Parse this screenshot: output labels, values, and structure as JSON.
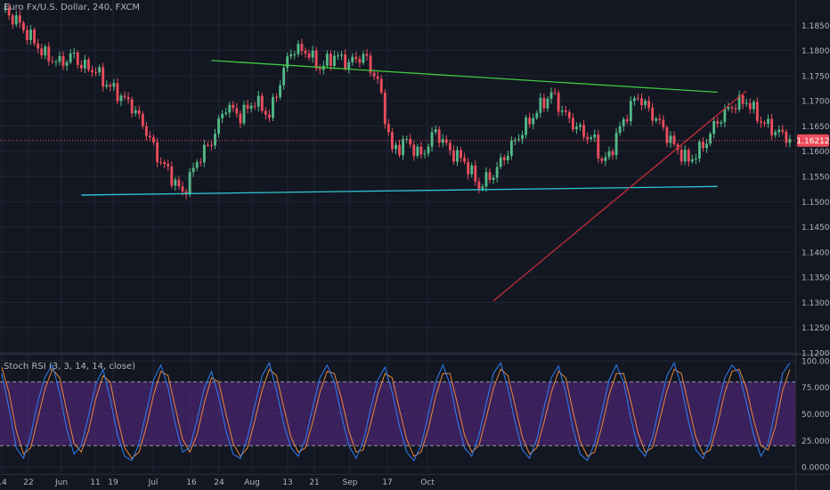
{
  "title": "Euro Fx/U.S. Dollar, 240, FXCM",
  "indicator_label": "Stoch RSI (3, 3, 14, 14, close)",
  "colors": {
    "background": "#131722",
    "grid": "#232634",
    "axis_text": "#b2b5be",
    "candle_up": "#53b987",
    "candle_down": "#eb4d5c",
    "resistance_line": "#3ec93e",
    "support_line": "#2fc7d6",
    "trend_line": "#c42c3a",
    "price_line": "#eb4d5c",
    "price_badge": "#eb4d5c",
    "k_line": "#2f7ff2",
    "d_line": "#e8873a",
    "band_fill": "#5b2a8a"
  },
  "chart_data": [
    {
      "type": "candlestick",
      "title": "Euro Fx/U.S. Dollar, 240, FXCM",
      "x_ticks": [
        "14",
        "22",
        "Jun",
        "11",
        "19",
        "Jul",
        "16",
        "24",
        "Aug",
        "13",
        "21",
        "Sep",
        "17",
        "Oct"
      ],
      "y_ticks": [
        "1.18500",
        "1.18000",
        "1.17500",
        "1.17000",
        "1.16500",
        "1.16000",
        "1.15500",
        "1.15000",
        "1.14500",
        "1.14000",
        "1.13500",
        "1.13000",
        "1.12500",
        "1.12000"
      ],
      "ylim": [
        1.12,
        1.19
      ],
      "last_price": "1.16212",
      "last_price_value": 1.16212,
      "grid": true,
      "series": [
        {
          "name": "",
          "kind": "close_path",
          "x": [
            0,
            4,
            8,
            12,
            16,
            20,
            22,
            26,
            28,
            32,
            36,
            40,
            43,
            46,
            50,
            54,
            58,
            62,
            66,
            70,
            74,
            78,
            80,
            84,
            88,
            92,
            96,
            100,
            104,
            108,
            112,
            116,
            120,
            124,
            128,
            132,
            136,
            140,
            144,
            148,
            152,
            156,
            160,
            164,
            166,
            168,
            170,
            172,
            174,
            176,
            178,
            182,
            186,
            190,
            194,
            198,
            202,
            206,
            210,
            214,
            218
          ],
          "y": [
            1.188,
            1.186,
            1.1825,
            1.179,
            1.1775,
            1.179,
            1.177,
            1.176,
            1.174,
            1.1715,
            1.169,
            1.164,
            1.159,
            1.156,
            1.1515,
            1.158,
            1.162,
            1.169,
            1.167,
            1.17,
            1.167,
            1.176,
            1.18,
            1.18,
            1.1765,
            1.179,
            1.1775,
            1.179,
            1.174,
            1.16,
            1.162,
            1.159,
            1.164,
            1.16,
            1.158,
            1.153,
            1.1555,
            1.16,
            1.164,
            1.168,
            1.1715,
            1.167,
            1.164,
            1.162,
            1.158,
            1.159,
            1.163,
            1.166,
            1.169,
            1.171,
            1.169,
            1.1655,
            1.161,
            1.158,
            1.161,
            1.166,
            1.169,
            1.17,
            1.166,
            1.164,
            1.1625
          ]
        }
      ],
      "annotations": [
        {
          "name": "resistance-line",
          "from": [
            58,
            1.178
          ],
          "to": [
            198,
            1.1717
          ]
        },
        {
          "name": "support-line",
          "from": [
            22,
            1.1513
          ],
          "to": [
            198,
            1.153
          ]
        },
        {
          "name": "trend-line",
          "from": [
            136,
            1.1303
          ],
          "to": [
            206,
            1.172
          ]
        }
      ]
    },
    {
      "type": "line",
      "title": "Stoch RSI (3, 3, 14, 14, close)",
      "y_ticks": [
        "100.0000",
        "75.0000",
        "50.0000",
        "25.0000",
        "0.0000"
      ],
      "ylim": [
        -5,
        105
      ],
      "bands": [
        20,
        80
      ],
      "x": [
        0,
        2,
        4,
        6,
        8,
        10,
        12,
        14,
        16,
        18,
        20,
        22,
        24,
        26,
        28,
        30,
        32,
        34,
        36,
        38,
        40,
        42,
        44,
        46,
        48,
        50,
        52,
        54,
        56,
        58,
        60,
        62,
        64,
        66,
        68,
        70,
        72,
        74,
        76,
        78,
        80,
        82,
        84,
        86,
        88,
        90,
        92,
        94,
        96,
        98,
        100,
        102,
        104,
        106,
        108,
        110,
        112,
        114,
        116,
        118,
        120,
        122,
        124,
        126,
        128,
        130,
        132,
        134,
        136,
        138,
        140,
        142,
        144,
        146,
        148,
        150,
        152,
        154,
        156,
        158,
        160,
        162,
        164,
        166,
        168,
        170,
        172,
        174,
        176,
        178,
        180,
        182,
        184,
        186,
        188,
        190,
        192,
        194,
        196,
        198,
        200,
        202,
        204,
        206,
        208,
        210,
        212,
        214,
        216,
        218
      ],
      "series": [
        {
          "name": "",
          "values": [
            88,
            55,
            18,
            8,
            30,
            62,
            85,
            96,
            70,
            35,
            12,
            20,
            48,
            78,
            92,
            64,
            30,
            10,
            6,
            22,
            52,
            82,
            96,
            75,
            40,
            14,
            18,
            44,
            74,
            90,
            66,
            34,
            12,
            8,
            28,
            58,
            86,
            98,
            72,
            40,
            18,
            10,
            26,
            56,
            84,
            96,
            80,
            48,
            20,
            8,
            24,
            54,
            82,
            94,
            70,
            38,
            14,
            6,
            20,
            50,
            80,
            96,
            78,
            44,
            18,
            10,
            30,
            60,
            88,
            98,
            74,
            42,
            16,
            8,
            26,
            56,
            84,
            95,
            70,
            36,
            12,
            6,
            22,
            52,
            82,
            96,
            80,
            46,
            18,
            10,
            28,
            58,
            86,
            98,
            76,
            42,
            16,
            8,
            24,
            56,
            84,
            96,
            88,
            60,
            30,
            10,
            22,
            54,
            88,
            98
          ]
        },
        {
          "name": "",
          "values": [
            94,
            70,
            34,
            12,
            18,
            46,
            74,
            92,
            84,
            52,
            22,
            14,
            34,
            64,
            86,
            80,
            46,
            18,
            8,
            14,
            38,
            68,
            90,
            86,
            56,
            26,
            14,
            30,
            60,
            84,
            80,
            50,
            22,
            10,
            18,
            44,
            72,
            92,
            86,
            56,
            28,
            14,
            18,
            42,
            70,
            90,
            88,
            64,
            34,
            14,
            16,
            40,
            68,
            88,
            84,
            54,
            26,
            10,
            14,
            36,
            66,
            88,
            88,
            60,
            30,
            14,
            20,
            46,
            74,
            92,
            86,
            58,
            28,
            12,
            18,
            42,
            70,
            90,
            84,
            52,
            24,
            10,
            14,
            38,
            68,
            88,
            88,
            62,
            32,
            14,
            18,
            44,
            72,
            92,
            88,
            58,
            28,
            12,
            16,
            40,
            70,
            90,
            92,
            74,
            44,
            20,
            16,
            38,
            72,
            92
          ]
        }
      ]
    }
  ]
}
